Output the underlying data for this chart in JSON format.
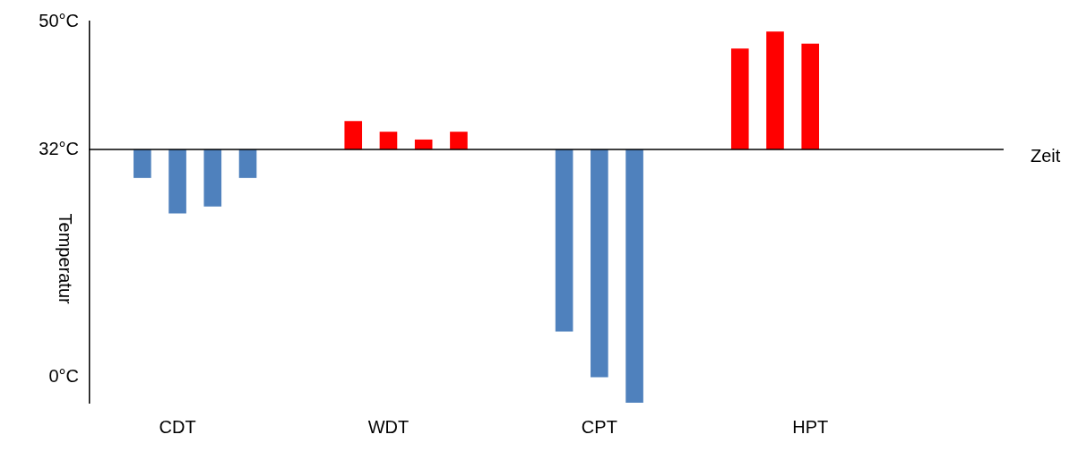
{
  "chart_data": {
    "type": "bar",
    "xlabel": "Zeit",
    "ylabel": "Temperatur",
    "categories": [
      null,
      null,
      "CDT",
      null,
      null,
      null,
      null,
      null,
      "WDT",
      null,
      null,
      null,
      null,
      null,
      "CPT",
      null,
      null,
      null,
      null,
      null,
      "HPT",
      null,
      null,
      null,
      null,
      null
    ],
    "series": [
      {
        "color": "#4f81bd",
        "values": [
          null,
          -4,
          -9,
          -8,
          -4,
          null,
          null,
          null,
          null,
          null,
          null,
          null,
          null,
          -25.6,
          -32,
          -35.6,
          null,
          null,
          null,
          null,
          null,
          null,
          null,
          null,
          null,
          null
        ],
        "base": [
          null,
          32,
          32,
          32,
          32,
          null,
          null,
          null,
          null,
          null,
          null,
          null,
          null,
          32,
          32,
          32,
          null,
          null,
          null,
          null,
          null,
          null,
          null,
          null,
          null,
          null
        ]
      },
      {
        "color": "#ff0000",
        "values": [
          null,
          null,
          null,
          null,
          null,
          null,
          null,
          4,
          2.5,
          1.4,
          2.5,
          null,
          null,
          null,
          null,
          null,
          null,
          null,
          14.2,
          16.6,
          14.9,
          null,
          null,
          null,
          null,
          null
        ],
        "base": [
          null,
          null,
          null,
          null,
          null,
          null,
          null,
          32,
          32,
          32,
          32,
          null,
          null,
          null,
          null,
          null,
          null,
          null,
          32,
          32,
          32,
          null,
          null,
          null,
          null,
          null
        ]
      }
    ],
    "ylim": [
      -3.6,
      50
    ],
    "yticks": [
      {
        "value": 0,
        "label": "0°C"
      },
      {
        "value": 32,
        "label": "32°C"
      },
      {
        "value": 50,
        "label": "50°C"
      }
    ],
    "ref_lines": [
      {
        "axis": "y",
        "value": 32
      }
    ],
    "grid": false
  }
}
